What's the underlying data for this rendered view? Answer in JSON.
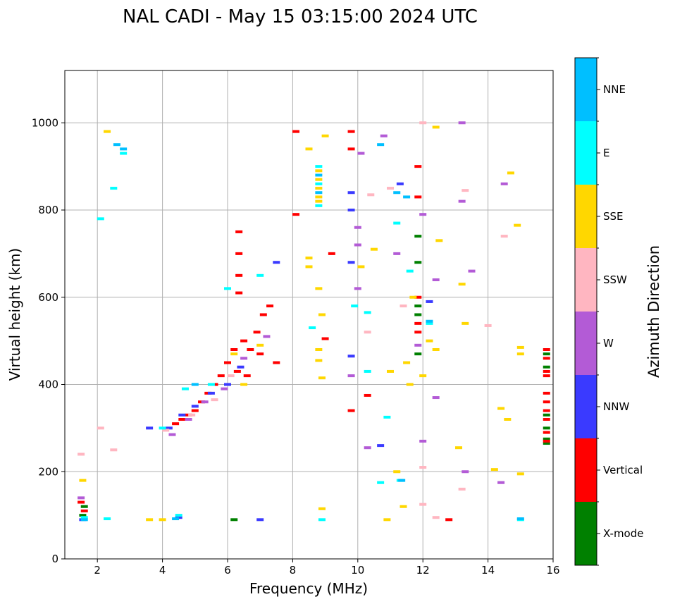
{
  "chart_data": {
    "type": "scatter",
    "title": "NAL CADI - May 15 03:15:00 2024 UTC",
    "xlabel": "Frequency (MHz)",
    "ylabel": "Virtual height (km)",
    "xlim": [
      1.0,
      16.0
    ],
    "ylim": [
      0,
      1120
    ],
    "xticks": [
      2,
      4,
      6,
      8,
      10,
      12,
      14,
      16
    ],
    "yticks": [
      0,
      200,
      400,
      600,
      800,
      1000
    ],
    "grid": true,
    "colorbar": {
      "title": "Azimuth Direction",
      "categories": [
        "X-mode",
        "Vertical",
        "NNW",
        "W",
        "SSW",
        "SSE",
        "E",
        "NNE"
      ],
      "colors": [
        "#008000",
        "#ff0000",
        "#3a3aff",
        "#b35bd6",
        "#ffb6c1",
        "#ffd700",
        "#00ffff",
        "#00bfff"
      ]
    },
    "series": [
      {
        "name": "X-mode",
        "points": [
          [
            11.85,
            580
          ],
          [
            11.85,
            560
          ],
          [
            11.85,
            470
          ],
          [
            11.85,
            680
          ],
          [
            11.85,
            740
          ],
          [
            15.8,
            470
          ],
          [
            15.8,
            440
          ],
          [
            15.8,
            330
          ],
          [
            15.8,
            300
          ],
          [
            15.8,
            275
          ],
          [
            15.8,
            265
          ],
          [
            1.55,
            100
          ],
          [
            1.6,
            120
          ],
          [
            6.2,
            90
          ]
        ]
      },
      {
        "name": "Vertical",
        "points": [
          [
            6.35,
            750
          ],
          [
            6.35,
            700
          ],
          [
            6.35,
            650
          ],
          [
            6.35,
            610
          ],
          [
            6.5,
            500
          ],
          [
            6.7,
            480
          ],
          [
            6.9,
            520
          ],
          [
            7.1,
            560
          ],
          [
            6.2,
            480
          ],
          [
            6.0,
            450
          ],
          [
            5.8,
            420
          ],
          [
            5.6,
            400
          ],
          [
            5.4,
            380
          ],
          [
            5.2,
            360
          ],
          [
            5.0,
            340
          ],
          [
            4.8,
            330
          ],
          [
            4.6,
            320
          ],
          [
            4.4,
            310
          ],
          [
            6.3,
            430
          ],
          [
            6.6,
            420
          ],
          [
            7.0,
            470
          ],
          [
            7.3,
            580
          ],
          [
            7.5,
            450
          ],
          [
            11.85,
            900
          ],
          [
            11.85,
            830
          ],
          [
            11.85,
            520
          ],
          [
            11.85,
            540
          ],
          [
            11.85,
            600
          ],
          [
            15.8,
            480
          ],
          [
            15.8,
            460
          ],
          [
            15.8,
            430
          ],
          [
            15.8,
            420
          ],
          [
            15.8,
            380
          ],
          [
            15.8,
            360
          ],
          [
            15.8,
            340
          ],
          [
            15.8,
            320
          ],
          [
            15.8,
            290
          ],
          [
            15.8,
            270
          ],
          [
            9.0,
            505
          ],
          [
            9.2,
            700
          ],
          [
            10.3,
            375
          ],
          [
            8.1,
            980
          ],
          [
            8.1,
            790
          ],
          [
            9.8,
            940
          ],
          [
            9.8,
            980
          ],
          [
            1.5,
            130
          ],
          [
            1.6,
            110
          ],
          [
            12.8,
            90
          ],
          [
            9.8,
            340
          ]
        ]
      },
      {
        "name": "NNW",
        "points": [
          [
            4.2,
            300
          ],
          [
            4.6,
            330
          ],
          [
            5.0,
            350
          ],
          [
            5.5,
            380
          ],
          [
            6.0,
            400
          ],
          [
            6.4,
            440
          ],
          [
            3.6,
            300
          ],
          [
            7.0,
            90
          ],
          [
            9.8,
            465
          ],
          [
            9.8,
            680
          ],
          [
            9.8,
            800
          ],
          [
            9.8,
            840
          ],
          [
            10.7,
            260
          ],
          [
            11.3,
            860
          ],
          [
            12.2,
            590
          ],
          [
            1.55,
            90
          ],
          [
            7.5,
            680
          ],
          [
            4.5,
            95
          ]
        ]
      },
      {
        "name": "W",
        "points": [
          [
            4.3,
            285
          ],
          [
            4.8,
            320
          ],
          [
            5.3,
            360
          ],
          [
            5.9,
            390
          ],
          [
            6.5,
            460
          ],
          [
            7.2,
            510
          ],
          [
            10.0,
            720
          ],
          [
            10.0,
            760
          ],
          [
            10.0,
            620
          ],
          [
            10.3,
            255
          ],
          [
            10.8,
            970
          ],
          [
            11.2,
            700
          ],
          [
            12.0,
            270
          ],
          [
            12.0,
            790
          ],
          [
            12.4,
            640
          ],
          [
            13.2,
            1000
          ],
          [
            13.2,
            820
          ],
          [
            13.5,
            660
          ],
          [
            14.5,
            860
          ],
          [
            14.4,
            175
          ],
          [
            13.3,
            200
          ],
          [
            9.8,
            420
          ],
          [
            10.1,
            930
          ],
          [
            11.85,
            490
          ],
          [
            12.4,
            370
          ],
          [
            1.5,
            140
          ]
        ]
      },
      {
        "name": "SSW",
        "points": [
          [
            4.1,
            295
          ],
          [
            4.9,
            330
          ],
          [
            5.6,
            365
          ],
          [
            6.1,
            420
          ],
          [
            10.3,
            520
          ],
          [
            11.4,
            580
          ],
          [
            11.0,
            850
          ],
          [
            12.0,
            210
          ],
          [
            12.0,
            125
          ],
          [
            13.2,
            160
          ],
          [
            14.5,
            740
          ],
          [
            12.4,
            95
          ],
          [
            2.1,
            300
          ],
          [
            2.5,
            250
          ],
          [
            1.5,
            240
          ],
          [
            12.0,
            1000
          ],
          [
            13.3,
            845
          ],
          [
            14.0,
            535
          ],
          [
            10.4,
            835
          ]
        ]
      },
      {
        "name": "SSE",
        "points": [
          [
            8.8,
            890
          ],
          [
            8.8,
            870
          ],
          [
            8.8,
            850
          ],
          [
            8.8,
            830
          ],
          [
            8.8,
            820
          ],
          [
            9.0,
            970
          ],
          [
            8.5,
            940
          ],
          [
            8.5,
            690
          ],
          [
            8.5,
            670
          ],
          [
            8.8,
            620
          ],
          [
            8.9,
            560
          ],
          [
            8.8,
            480
          ],
          [
            8.8,
            455
          ],
          [
            8.9,
            415
          ],
          [
            8.9,
            115
          ],
          [
            10.1,
            670
          ],
          [
            10.5,
            710
          ],
          [
            11.0,
            430
          ],
          [
            11.2,
            200
          ],
          [
            11.4,
            120
          ],
          [
            11.5,
            450
          ],
          [
            11.6,
            400
          ],
          [
            11.7,
            600
          ],
          [
            12.0,
            420
          ],
          [
            12.2,
            500
          ],
          [
            12.4,
            480
          ],
          [
            12.4,
            990
          ],
          [
            12.5,
            730
          ],
          [
            13.1,
            255
          ],
          [
            13.2,
            630
          ],
          [
            13.3,
            540
          ],
          [
            14.2,
            205
          ],
          [
            14.4,
            345
          ],
          [
            14.6,
            320
          ],
          [
            14.7,
            885
          ],
          [
            14.9,
            765
          ],
          [
            15.0,
            485
          ],
          [
            15.0,
            470
          ],
          [
            15.0,
            195
          ],
          [
            4.0,
            90
          ],
          [
            3.6,
            90
          ],
          [
            6.2,
            470
          ],
          [
            6.5,
            400
          ],
          [
            7.0,
            490
          ],
          [
            1.55,
            180
          ],
          [
            10.9,
            90
          ],
          [
            2.3,
            980
          ]
        ]
      },
      {
        "name": "E",
        "points": [
          [
            8.8,
            900
          ],
          [
            8.8,
            860
          ],
          [
            8.8,
            810
          ],
          [
            10.3,
            430
          ],
          [
            10.3,
            565
          ],
          [
            10.7,
            175
          ],
          [
            11.2,
            770
          ],
          [
            11.3,
            180
          ],
          [
            11.6,
            660
          ],
          [
            12.2,
            540
          ],
          [
            15.0,
            90
          ],
          [
            2.1,
            780
          ],
          [
            2.5,
            850
          ],
          [
            2.8,
            930
          ],
          [
            4.0,
            300
          ],
          [
            4.5,
            100
          ],
          [
            4.7,
            390
          ],
          [
            5.5,
            400
          ],
          [
            8.6,
            530
          ],
          [
            9.9,
            580
          ],
          [
            10.9,
            325
          ],
          [
            1.6,
            95
          ],
          [
            2.3,
            92
          ],
          [
            8.9,
            90
          ],
          [
            6.0,
            620
          ],
          [
            7.0,
            650
          ]
        ]
      },
      {
        "name": "NNE",
        "points": [
          [
            8.8,
            840
          ],
          [
            8.8,
            880
          ],
          [
            10.7,
            950
          ],
          [
            11.2,
            840
          ],
          [
            11.5,
            830
          ],
          [
            11.35,
            180
          ],
          [
            12.2,
            545
          ],
          [
            15.0,
            92
          ],
          [
            2.6,
            950
          ],
          [
            2.8,
            940
          ],
          [
            1.6,
            90
          ],
          [
            4.4,
            92
          ],
          [
            5.0,
            400
          ]
        ]
      }
    ]
  }
}
